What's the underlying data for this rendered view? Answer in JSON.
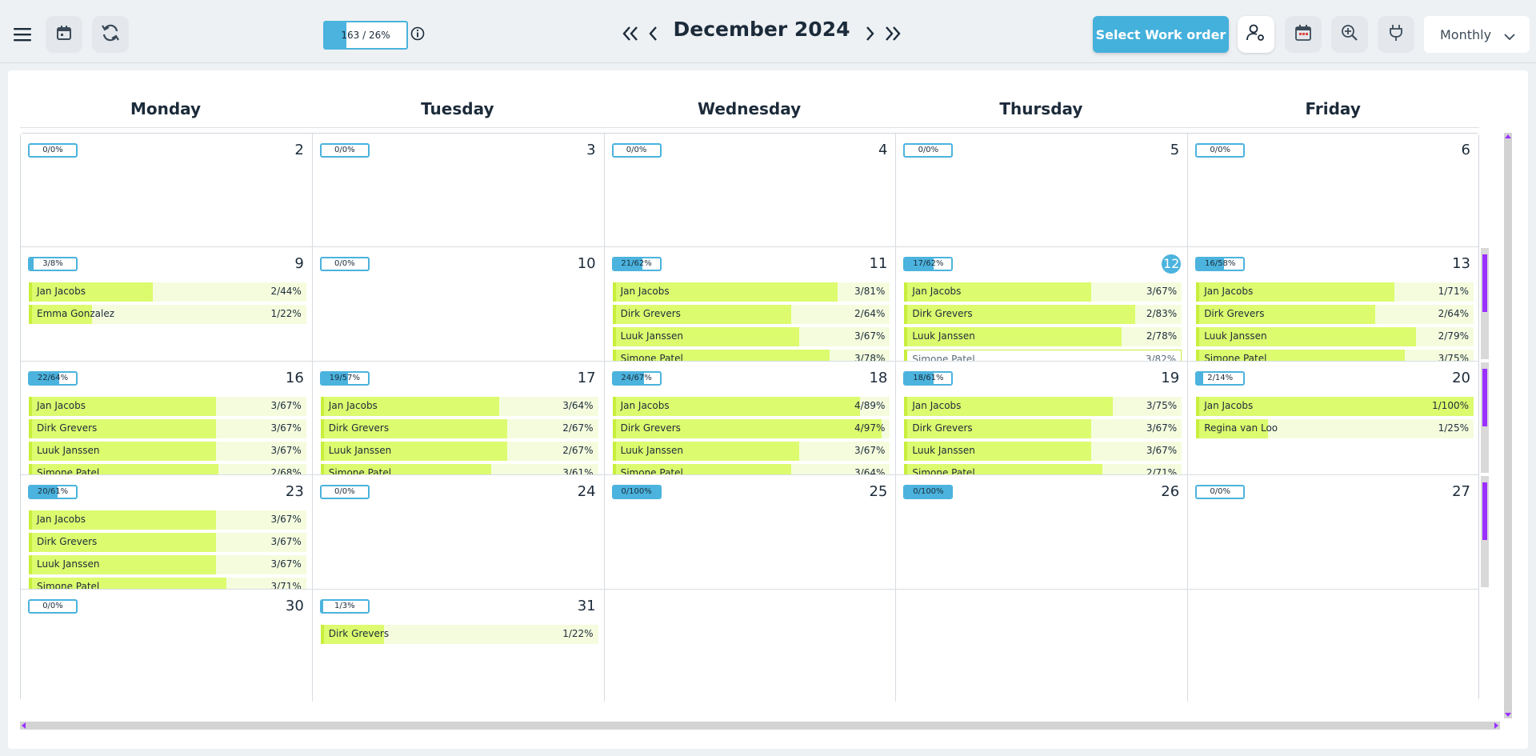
{
  "header": {
    "progress": {
      "label": "163 / 26%",
      "percent": 26
    },
    "month_title": "December 2024",
    "select_work_order": "Select Work order",
    "view_mode": "Monthly",
    "colors": {
      "accent": "#4bb3dd",
      "bar": "#dcfb6e",
      "bar_edge": "#c8ef3c",
      "scroll_thumb": "#9b30ff"
    },
    "icons": [
      "hamburger-icon",
      "calendar-icon",
      "refresh-icon",
      "info-icon",
      "double-chevron-left-icon",
      "chevron-left-icon",
      "chevron-right-icon",
      "double-chevron-right-icon",
      "user-settings-icon",
      "calendar-grid-icon",
      "zoom-in-icon",
      "plug-icon",
      "chevron-down-icon"
    ]
  },
  "weekdays": [
    "Monday",
    "Tuesday",
    "Wednesday",
    "Thursday",
    "Friday"
  ],
  "weeks": [
    [
      {
        "day": "2",
        "badge": "0/0%",
        "pct": 0,
        "emps": []
      },
      {
        "day": "3",
        "badge": "0/0%",
        "pct": 0,
        "emps": []
      },
      {
        "day": "4",
        "badge": "0/0%",
        "pct": 0,
        "emps": []
      },
      {
        "day": "5",
        "badge": "0/0%",
        "pct": 0,
        "emps": []
      },
      {
        "day": "6",
        "badge": "0/0%",
        "pct": 0,
        "emps": []
      }
    ],
    [
      {
        "day": "9",
        "badge": "3/8%",
        "pct": 8,
        "emps": [
          {
            "name": "Jan Jacobs",
            "val": "2/44%",
            "pct": 44
          },
          {
            "name": "Emma Gonzalez",
            "val": "1/22%",
            "pct": 22
          }
        ]
      },
      {
        "day": "10",
        "badge": "0/0%",
        "pct": 0,
        "emps": []
      },
      {
        "day": "11",
        "badge": "21/62%",
        "pct": 62,
        "scroll": true,
        "emps": [
          {
            "name": "Jan Jacobs",
            "val": "3/81%",
            "pct": 81
          },
          {
            "name": "Dirk Grevers",
            "val": "2/64%",
            "pct": 64
          },
          {
            "name": "Luuk Janssen",
            "val": "3/67%",
            "pct": 67
          },
          {
            "name": "Simone Patel",
            "val": "3/78%",
            "pct": 78
          }
        ]
      },
      {
        "day": "12",
        "badge": "17/62%",
        "pct": 62,
        "today": true,
        "emps": [
          {
            "name": "Jan Jacobs",
            "val": "3/67%",
            "pct": 67
          },
          {
            "name": "Dirk Grevers",
            "val": "2/83%",
            "pct": 83
          },
          {
            "name": "Luuk Janssen",
            "val": "2/78%",
            "pct": 78
          },
          {
            "name": "Simone Patel",
            "val": "3/82%",
            "pct": 82,
            "outlined": true
          }
        ]
      },
      {
        "day": "13",
        "badge": "16/58%",
        "pct": 58,
        "emps": [
          {
            "name": "Jan Jacobs",
            "val": "1/71%",
            "pct": 71
          },
          {
            "name": "Dirk Grevers",
            "val": "2/64%",
            "pct": 64
          },
          {
            "name": "Luuk Janssen",
            "val": "2/79%",
            "pct": 79
          },
          {
            "name": "Simone Patel",
            "val": "3/75%",
            "pct": 75
          }
        ]
      }
    ],
    [
      {
        "day": "16",
        "badge": "22/64%",
        "pct": 64,
        "emps": [
          {
            "name": "Jan Jacobs",
            "val": "3/67%",
            "pct": 67
          },
          {
            "name": "Dirk Grevers",
            "val": "3/67%",
            "pct": 67
          },
          {
            "name": "Luuk Janssen",
            "val": "3/67%",
            "pct": 67
          },
          {
            "name": "Simone Patel",
            "val": "2/68%",
            "pct": 68
          }
        ]
      },
      {
        "day": "17",
        "badge": "19/57%",
        "pct": 57,
        "emps": [
          {
            "name": "Jan Jacobs",
            "val": "3/64%",
            "pct": 64
          },
          {
            "name": "Dirk Grevers",
            "val": "2/67%",
            "pct": 67
          },
          {
            "name": "Luuk Janssen",
            "val": "2/67%",
            "pct": 67
          },
          {
            "name": "Simone Patel",
            "val": "3/61%",
            "pct": 61
          }
        ]
      },
      {
        "day": "18",
        "badge": "24/67%",
        "pct": 67,
        "emps": [
          {
            "name": "Jan Jacobs",
            "val": "4/89%",
            "pct": 89
          },
          {
            "name": "Dirk Grevers",
            "val": "4/97%",
            "pct": 97
          },
          {
            "name": "Luuk Janssen",
            "val": "3/67%",
            "pct": 67
          },
          {
            "name": "Simone Patel",
            "val": "3/64%",
            "pct": 64
          }
        ]
      },
      {
        "day": "19",
        "badge": "18/61%",
        "pct": 61,
        "emps": [
          {
            "name": "Jan Jacobs",
            "val": "3/75%",
            "pct": 75
          },
          {
            "name": "Dirk Grevers",
            "val": "3/67%",
            "pct": 67
          },
          {
            "name": "Luuk Janssen",
            "val": "3/67%",
            "pct": 67
          },
          {
            "name": "Simone Patel",
            "val": "2/71%",
            "pct": 71
          }
        ]
      },
      {
        "day": "20",
        "badge": "2/14%",
        "pct": 14,
        "emps": [
          {
            "name": "Jan Jacobs",
            "val": "1/100%",
            "pct": 100
          },
          {
            "name": "Regina van Loo",
            "val": "1/25%",
            "pct": 25
          }
        ]
      }
    ],
    [
      {
        "day": "23",
        "badge": "20/61%",
        "pct": 61,
        "emps": [
          {
            "name": "Jan Jacobs",
            "val": "3/67%",
            "pct": 67
          },
          {
            "name": "Dirk Grevers",
            "val": "3/67%",
            "pct": 67
          },
          {
            "name": "Luuk Janssen",
            "val": "3/67%",
            "pct": 67
          },
          {
            "name": "Simone Patel",
            "val": "3/71%",
            "pct": 71
          }
        ]
      },
      {
        "day": "24",
        "badge": "0/0%",
        "pct": 0,
        "emps": []
      },
      {
        "day": "25",
        "badge": "0/100%",
        "pct": 100,
        "emps": []
      },
      {
        "day": "26",
        "badge": "0/100%",
        "pct": 100,
        "emps": []
      },
      {
        "day": "27",
        "badge": "0/0%",
        "pct": 0,
        "emps": []
      }
    ],
    [
      {
        "day": "30",
        "badge": "0/0%",
        "pct": 0,
        "emps": []
      },
      {
        "day": "31",
        "badge": "1/3%",
        "pct": 3,
        "emps": [
          {
            "name": "Dirk Grevers",
            "val": "1/22%",
            "pct": 22
          }
        ]
      },
      {
        "day": "",
        "empty": true,
        "emps": []
      },
      {
        "day": "",
        "empty": true,
        "emps": []
      },
      {
        "day": "",
        "empty": true,
        "emps": []
      }
    ]
  ]
}
